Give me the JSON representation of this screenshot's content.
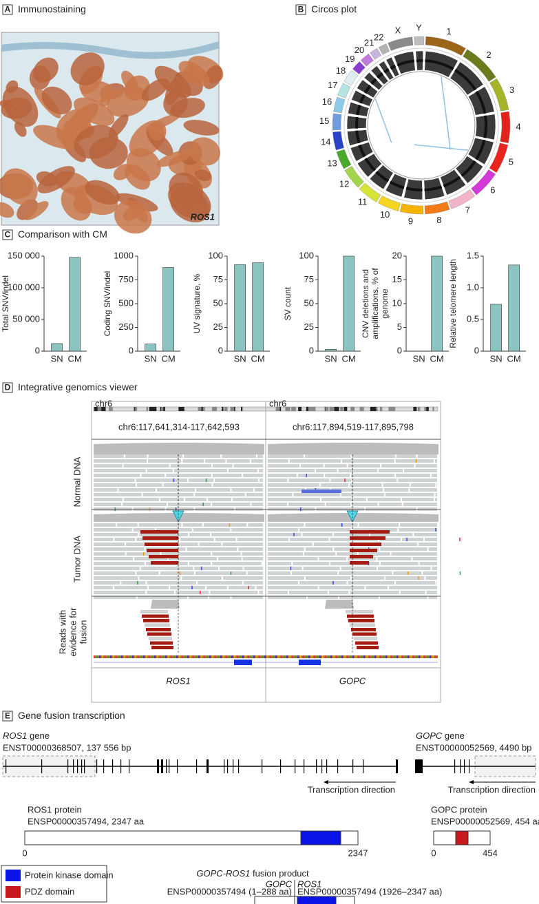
{
  "panels": {
    "a": {
      "letter": "A",
      "title": "Immunostaining",
      "image_label": "ROS1"
    },
    "b": {
      "letter": "B",
      "title": "Circos plot",
      "chromosomes": [
        "1",
        "2",
        "3",
        "4",
        "5",
        "6",
        "7",
        "8",
        "9",
        "10",
        "11",
        "12",
        "13",
        "14",
        "15",
        "16",
        "17",
        "18",
        "19",
        "20",
        "21",
        "22",
        "X",
        "Y"
      ]
    },
    "c": {
      "letter": "C",
      "title": "Comparison with CM"
    },
    "d": {
      "letter": "D",
      "title": "Integrative genomics viewer",
      "tracks": [
        "Normal DNA",
        "Tumor DNA",
        "Reads with evidence for fusion"
      ],
      "loci": [
        "chr6:117,641,314-117,642,593",
        "chr6:117,894,519-117,895,798"
      ],
      "chromosome": "chr6",
      "genes": [
        "ROS1",
        "GOPC"
      ]
    },
    "e": {
      "letter": "E",
      "title": "Gene fusion transcription",
      "ros1_gene": {
        "name": "ROS1",
        "word": "gene",
        "id": "ENST00000368507, 137 556 bp"
      },
      "gopc_gene": {
        "name": "GOPC",
        "word": "gene",
        "id": "ENST00000052569, 4490 bp"
      },
      "direction": "Transcription direction",
      "ros1_protein": {
        "name": "ROS1 protein",
        "id": "ENSP00000357494, 2347 aa",
        "start": "0",
        "end": "2347"
      },
      "gopc_protein": {
        "name": "GOPC protein",
        "id": "ENSP00000052569, 454 aa",
        "start": "0",
        "end": "454"
      },
      "legend": [
        "Protein kinase domain",
        "PDZ domain"
      ],
      "fusion": {
        "name": "GOPC-ROS1",
        "word": "fusion product",
        "left_gene": "GOPC",
        "right_gene": "ROS1",
        "left_id": "ENSP00000357494 (1–288 aa)",
        "right_id": "ENSP00000357494 (1926–2347 aa)"
      }
    }
  },
  "chart_data": [
    {
      "type": "bar",
      "y_label": "Total SNV/indel",
      "categories": [
        "SN",
        "CM"
      ],
      "values": [
        12000,
        148000
      ],
      "color": "#8cc4c2",
      "ylim": [
        0,
        150000
      ],
      "yticks": [
        0,
        {
          "value": 50000,
          "label": "50 000"
        },
        {
          "value": 100000,
          "label": "100 000"
        },
        {
          "value": 150000,
          "label": "150 000"
        }
      ]
    },
    {
      "type": "bar",
      "y_label": "Coding SNV/indel",
      "categories": [
        "SN",
        "CM"
      ],
      "values": [
        75,
        880
      ],
      "color": "#8cc4c2",
      "ylim": [
        0,
        1000
      ],
      "yticks": [
        0,
        250,
        500,
        750,
        1000
      ]
    },
    {
      "type": "bar",
      "y_label": "UV signature, %",
      "categories": [
        "SN",
        "CM"
      ],
      "values": [
        91,
        93
      ],
      "color": "#8cc4c2",
      "ylim": [
        0,
        100
      ],
      "yticks": [
        0,
        25,
        50,
        75,
        100
      ]
    },
    {
      "type": "bar",
      "y_label": "SV count",
      "categories": [
        "SN",
        "CM"
      ],
      "values": [
        2,
        100
      ],
      "color": "#8cc4c2",
      "ylim": [
        0,
        100
      ],
      "yticks": [
        0,
        25,
        50,
        75,
        100
      ]
    },
    {
      "type": "bar",
      "y_label": "CNV deletions and amplifications, % of genome",
      "categories": [
        "SN",
        "CM"
      ],
      "values": [
        0,
        20
      ],
      "color": "#8cc4c2",
      "ylim": [
        0,
        20
      ],
      "yticks": [
        0,
        5,
        10,
        15,
        20
      ]
    },
    {
      "type": "bar",
      "y_label": "Relative telomere length",
      "categories": [
        "SN",
        "CM"
      ],
      "values": [
        0.74,
        1.36
      ],
      "color": "#8cc4c2",
      "ylim": [
        0,
        1.5
      ],
      "yticks": [
        0,
        0.5,
        {
          "value": 1,
          "label": "1.0"
        },
        1.5
      ]
    }
  ]
}
